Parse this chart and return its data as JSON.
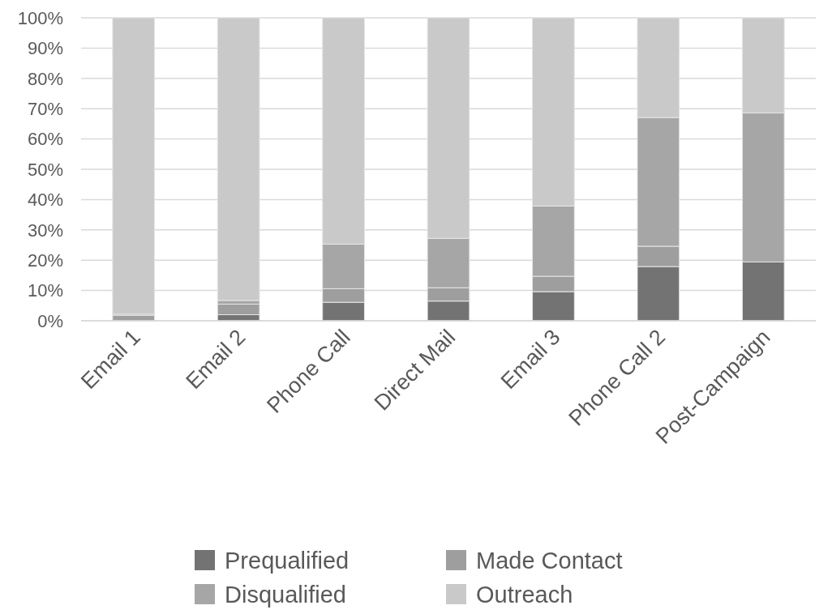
{
  "chart_data": {
    "type": "bar",
    "stacked": true,
    "categories": [
      "Email 1",
      "Email 2",
      "Phone Call",
      "Direct Mail",
      "Email 3",
      "Phone Call 2",
      "Post-Campaign"
    ],
    "series": [
      {
        "name": "Prequalified",
        "color": "#737373",
        "values": [
          0,
          2,
          6.1,
          6.5,
          9.6,
          17.9,
          19.4
        ]
      },
      {
        "name": "Made Contact",
        "color": "#9e9e9e",
        "values": [
          1.8,
          3.5,
          4.5,
          4.4,
          5.1,
          6.7,
          0
        ]
      },
      {
        "name": "Disqualified",
        "color": "#a6a6a6",
        "values": [
          0.4,
          1.2,
          14.7,
          16.3,
          23.2,
          42.5,
          49.2
        ]
      },
      {
        "name": "Outreach",
        "color": "#c9c9c9",
        "values": [
          97.8,
          93.3,
          74.7,
          72.8,
          62.1,
          32.9,
          31.4
        ]
      }
    ],
    "ylim": [
      0,
      100
    ],
    "yticks": [
      {
        "value": 0,
        "label": "0%"
      },
      {
        "value": 10,
        "label": "10%"
      },
      {
        "value": 20,
        "label": "20%"
      },
      {
        "value": 30,
        "label": "30%"
      },
      {
        "value": 40,
        "label": "40%"
      },
      {
        "value": 50,
        "label": "50%"
      },
      {
        "value": 60,
        "label": "60%"
      },
      {
        "value": 70,
        "label": "70%"
      },
      {
        "value": 80,
        "label": "80%"
      },
      {
        "value": 90,
        "label": "90%"
      },
      {
        "value": 100,
        "label": "100%"
      }
    ],
    "grid": "y",
    "legend": "bottom"
  }
}
